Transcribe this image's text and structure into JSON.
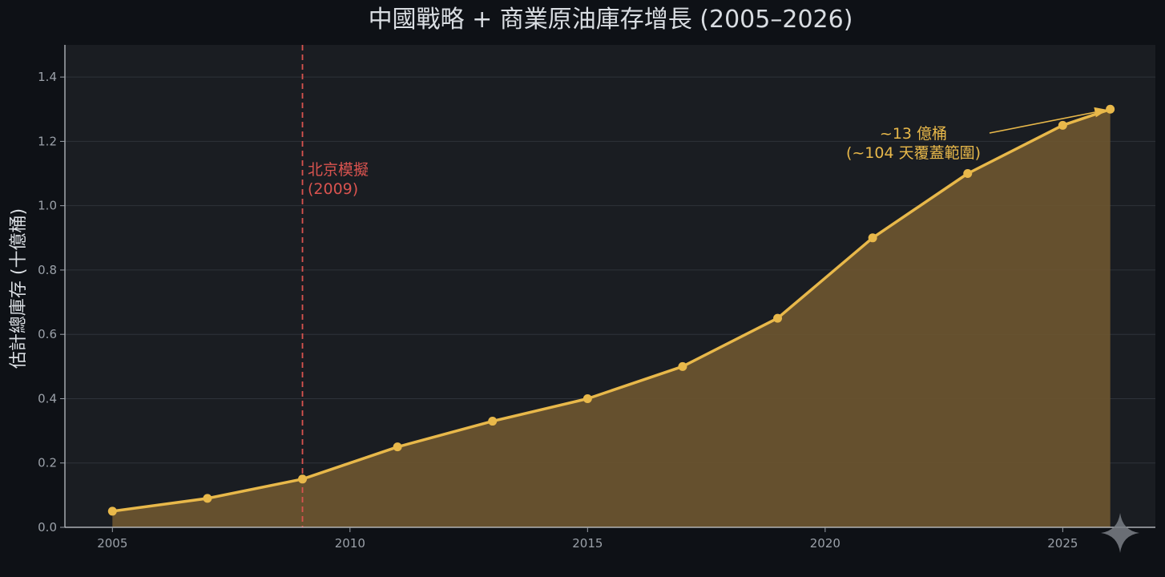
{
  "chart_data": {
    "type": "area",
    "title": "中國戰略 + 商業原油庫存增長 (2005–2026)",
    "xlabel": "",
    "ylabel": "估計總庫存 (十億桶)",
    "x": [
      2005,
      2007,
      2009,
      2011,
      2013,
      2015,
      2017,
      2019,
      2021,
      2023,
      2025,
      2026
    ],
    "values": [
      0.05,
      0.09,
      0.15,
      0.25,
      0.33,
      0.4,
      0.5,
      0.65,
      0.9,
      1.1,
      1.25,
      1.3
    ],
    "xlim": [
      2004,
      2026.95
    ],
    "ylim": [
      0,
      1.5
    ],
    "x_ticks": [
      "2005",
      "2010",
      "2015",
      "2020",
      "2025"
    ],
    "y_ticks": [
      "0.0",
      "0.2",
      "0.4",
      "0.6",
      "0.8",
      "1.0",
      "1.2",
      "1.4"
    ],
    "grid": true,
    "colors": {
      "line": "#e8b84a",
      "fill": "#6b5530",
      "annotation_gold": "#e8b84a",
      "annotation_red": "#d9534f",
      "plot_bg": "#1a1d22",
      "page_bg": "#0e1116"
    },
    "annotations": [
      {
        "id": "beijing",
        "lines": [
          "北京模擬",
          "(2009)"
        ],
        "x": 2009,
        "style": "vline-dashed"
      },
      {
        "id": "total",
        "lines": [
          "~13 億桶",
          "(~104 天覆蓋範圍)"
        ],
        "point_x": 2026,
        "point_y": 1.3,
        "style": "arrow"
      }
    ]
  },
  "watermark": {
    "icon": "sparkle-icon"
  }
}
